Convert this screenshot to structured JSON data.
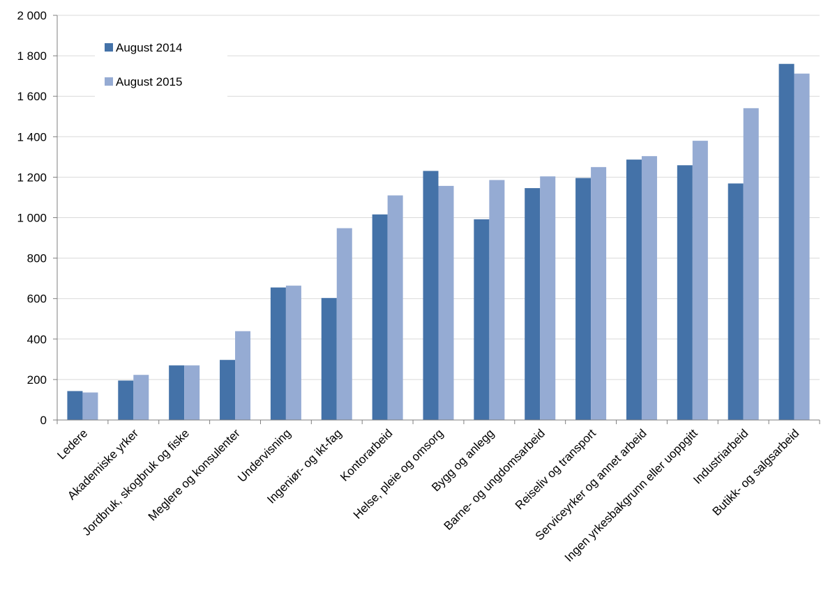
{
  "chart_data": {
    "type": "bar",
    "title": "",
    "xlabel": "",
    "ylabel": "",
    "ylim": [
      0,
      2000
    ],
    "yticks": [
      0,
      200,
      400,
      600,
      800,
      1000,
      1200,
      1400,
      1600,
      1800,
      2000
    ],
    "ytick_labels": [
      "0",
      "200",
      "400",
      "600",
      "800",
      "1 000",
      "1 200",
      "1 400",
      "1 600",
      "1 800",
      "2 000"
    ],
    "grid": true,
    "legend_position": "top-left",
    "categories": [
      "Ledere",
      "Akademiske yrker",
      "Jordbruk, skogbruk og fiske",
      "Meglere og konsulenter",
      "Undervisning",
      "Ingeniør- og ikt-fag",
      "Kontorarbeid",
      "Helse, pleie og omsorg",
      "Bygg og anlegg",
      "Barne- og ungdomsarbeid",
      "Reiseliv og transport",
      "Serviceyrker og annet arbeid",
      "Ingen yrkesbakgrunn eller uoppgitt",
      "Industriarbeid",
      "Butikk- og salgsarbeid"
    ],
    "series": [
      {
        "name": "August 2014",
        "color": "#4472a8",
        "values": [
          143,
          195,
          270,
          297,
          655,
          603,
          1016,
          1231,
          992,
          1146,
          1196,
          1287,
          1259,
          1169,
          1760
        ]
      },
      {
        "name": "August 2015",
        "color": "#95abd3",
        "values": [
          136,
          223,
          270,
          439,
          664,
          948,
          1110,
          1157,
          1186,
          1204,
          1250,
          1304,
          1380,
          1541,
          1712
        ]
      }
    ]
  }
}
